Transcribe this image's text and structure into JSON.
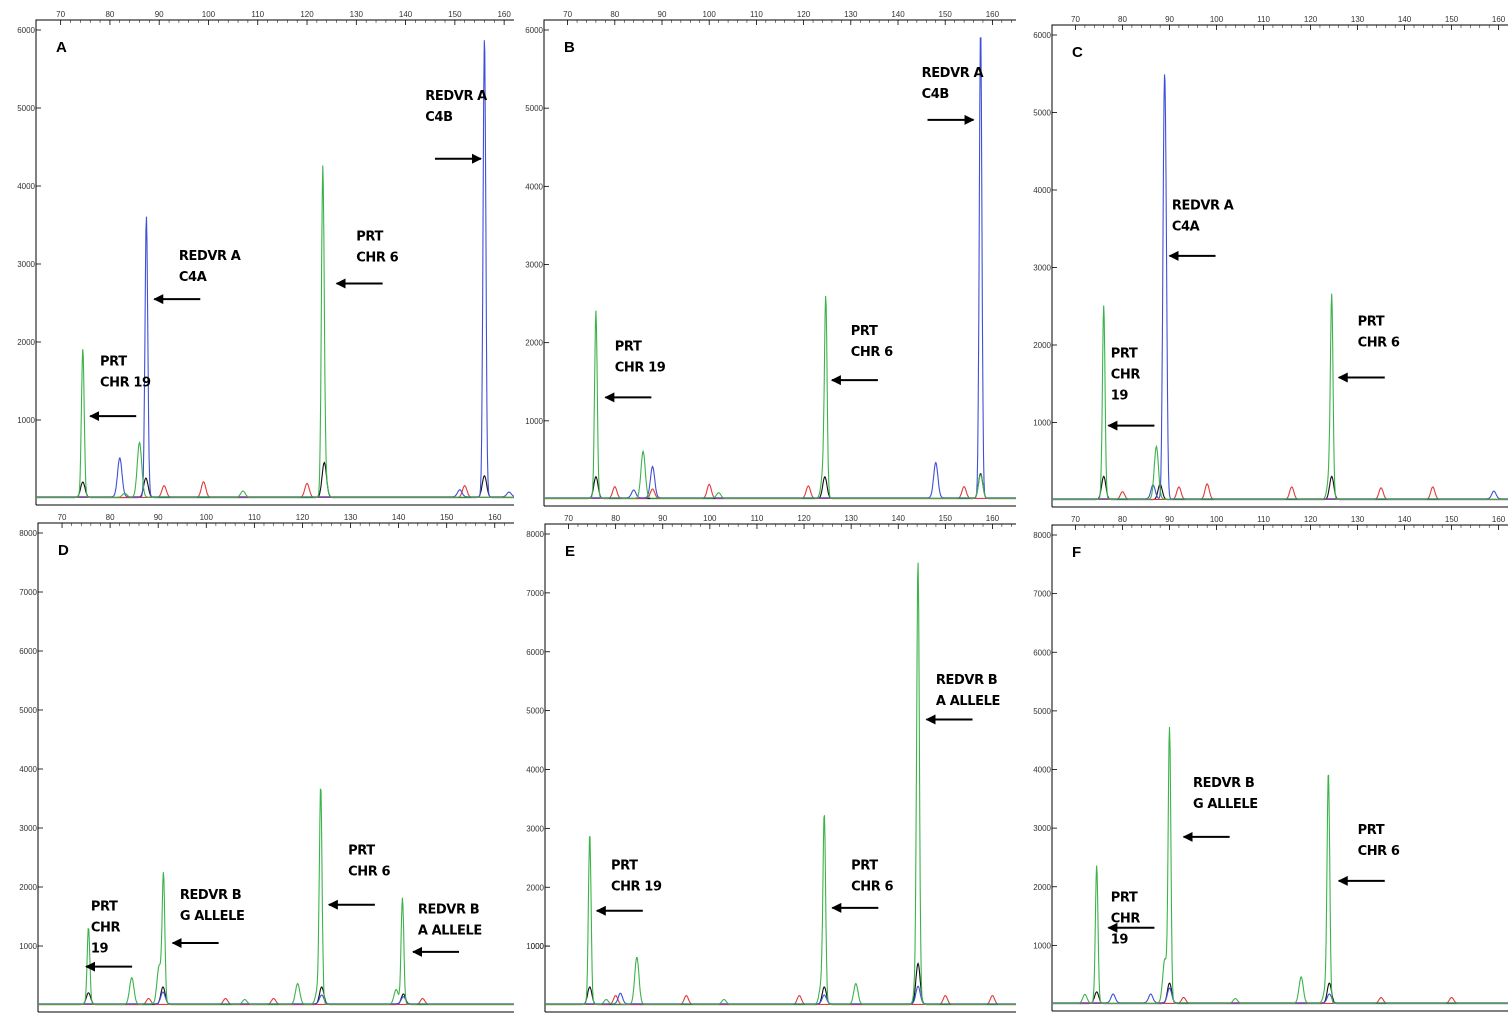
{
  "colors": {
    "green": "#3cb34a",
    "blue": "#3f4fd6",
    "red": "#e03a3a",
    "black": "#111111",
    "frame": "#000000"
  },
  "chart_data": [
    {
      "type": "line",
      "label": "A",
      "xlim": [
        65,
        162
      ],
      "ylim": [
        0,
        6000
      ],
      "x_ticks": [
        "70",
        "80",
        "90",
        "100",
        "110",
        "120",
        "130",
        "140",
        "150",
        "160"
      ],
      "y_ticks": [
        "1000",
        "2000",
        "3000",
        "4000",
        "5000",
        "6000"
      ],
      "series": [
        {
          "color": "green",
          "peaks": [
            [
              74.5,
              1900
            ],
            [
              86,
              700
            ],
            [
              123.2,
              4050
            ],
            [
              123.6,
              300
            ],
            [
              107,
              80
            ],
            [
              83,
              50
            ]
          ]
        },
        {
          "color": "blue",
          "peaks": [
            [
              82,
              500
            ],
            [
              87.4,
              3600
            ],
            [
              156,
              5900
            ],
            [
              151,
              90
            ],
            [
              161,
              60
            ]
          ]
        },
        {
          "color": "red",
          "peaks": [
            [
              99,
              200
            ],
            [
              91,
              150
            ],
            [
              120,
              180
            ],
            [
              152,
              150
            ]
          ]
        },
        {
          "color": "black",
          "peaks": [
            [
              74.5,
              200
            ],
            [
              87.3,
              250
            ],
            [
              123.5,
              450
            ],
            [
              156,
              280
            ]
          ]
        }
      ],
      "annotations": [
        {
          "lines": [
            "REDVR A",
            "C4B"
          ],
          "arrow": "right",
          "pointer_x": 155.3,
          "text_x": 144,
          "text_y": 5100,
          "y_at": 4350
        },
        {
          "lines": [
            "REDVR A",
            "C4A"
          ],
          "arrow": "left",
          "pointer_x": 89,
          "text_x": 94,
          "text_y": 3050,
          "y_at": 2550
        },
        {
          "lines": [
            "PRT",
            "CHR 6"
          ],
          "arrow": "left",
          "pointer_x": 126,
          "text_x": 130,
          "text_y": 3300,
          "y_at": 2750
        },
        {
          "lines": [
            "PRT",
            "CHR 19"
          ],
          "arrow": "left",
          "pointer_x": 76,
          "text_x": 78,
          "text_y": 1700,
          "y_at": 1050
        }
      ]
    },
    {
      "type": "line",
      "label": "B",
      "xlim": [
        65,
        165
      ],
      "ylim": [
        0,
        6000
      ],
      "x_ticks": [
        "70",
        "80",
        "90",
        "100",
        "110",
        "120",
        "130",
        "140",
        "150",
        "160"
      ],
      "y_ticks": [
        "1000",
        "2000",
        "3000",
        "4000",
        "5000",
        "6000"
      ],
      "series": [
        {
          "color": "green",
          "peaks": [
            [
              76,
              2400
            ],
            [
              86,
              600
            ],
            [
              124.7,
              2400
            ],
            [
              124.2,
              350
            ],
            [
              157.5,
              300
            ],
            [
              102,
              70
            ]
          ]
        },
        {
          "color": "blue",
          "peaks": [
            [
              88,
              400
            ],
            [
              84,
              100
            ],
            [
              148,
              450
            ],
            [
              157.5,
              6000
            ]
          ]
        },
        {
          "color": "red",
          "peaks": [
            [
              80,
              150
            ],
            [
              88,
              120
            ],
            [
              100,
              180
            ],
            [
              121,
              160
            ],
            [
              154,
              150
            ]
          ]
        },
        {
          "color": "black",
          "peaks": [
            [
              76,
              280
            ],
            [
              124.5,
              280
            ],
            [
              157.5,
              320
            ]
          ]
        }
      ],
      "annotations": [
        {
          "lines": [
            "REDVR A",
            "C4B"
          ],
          "arrow": "right",
          "pointer_x": 156,
          "text_x": 145,
          "text_y": 5400,
          "y_at": 4850
        },
        {
          "lines": [
            "PRT",
            "CHR 6"
          ],
          "arrow": "left",
          "pointer_x": 126,
          "text_x": 130,
          "text_y": 2100,
          "y_at": 1520
        },
        {
          "lines": [
            "PRT",
            "CHR 19"
          ],
          "arrow": "left",
          "pointer_x": 78,
          "text_x": 80,
          "text_y": 1900,
          "y_at": 1300
        }
      ]
    },
    {
      "type": "line",
      "label": "C",
      "xlim": [
        65,
        162
      ],
      "ylim": [
        0,
        6000
      ],
      "x_ticks": [
        "70",
        "80",
        "90",
        "100",
        "110",
        "120",
        "130",
        "140",
        "150",
        "160"
      ],
      "y_ticks": [
        "1000",
        "2000",
        "3000",
        "4000",
        "5000",
        "6000"
      ],
      "series": [
        {
          "color": "green",
          "peaks": [
            [
              76,
              2500
            ],
            [
              87.2,
              680
            ],
            [
              124.5,
              2500
            ],
            [
              124,
              280
            ]
          ]
        },
        {
          "color": "blue",
          "peaks": [
            [
              88.8,
              3900
            ],
            [
              89.2,
              3150
            ],
            [
              86.5,
              180
            ],
            [
              159,
              100
            ]
          ]
        },
        {
          "color": "red",
          "peaks": [
            [
              80,
              100
            ],
            [
              92,
              160
            ],
            [
              98,
              200
            ],
            [
              116,
              160
            ],
            [
              135,
              150
            ],
            [
              146,
              160
            ]
          ]
        },
        {
          "color": "black",
          "peaks": [
            [
              76,
              300
            ],
            [
              88,
              200
            ],
            [
              124.5,
              300
            ]
          ]
        }
      ],
      "annotations": [
        {
          "lines": [
            "REDVR A",
            "C4A"
          ],
          "arrow": "left",
          "pointer_x": 90,
          "text_x": 90.5,
          "text_y": 3750,
          "y_at": 3150
        },
        {
          "lines": [
            "PRT",
            "CHR 6"
          ],
          "arrow": "left",
          "pointer_x": 126,
          "text_x": 130,
          "text_y": 2250,
          "y_at": 1580
        },
        {
          "lines": [
            "PRT",
            "CHR",
            "19"
          ],
          "arrow": "left",
          "pointer_x": 77,
          "text_x": 77.5,
          "text_y": 1840,
          "y_at": 960
        }
      ]
    },
    {
      "type": "line",
      "label": "D",
      "xlim": [
        65,
        164
      ],
      "ylim": [
        0,
        8000
      ],
      "x_ticks": [
        "70",
        "80",
        "90",
        "100",
        "110",
        "120",
        "130",
        "140",
        "150",
        "160"
      ],
      "y_ticks": [
        "1000",
        "2000",
        "3000",
        "4000",
        "5000",
        "6000",
        "7000",
        "8000"
      ],
      "series": [
        {
          "color": "green",
          "peaks": [
            [
              75.5,
              1300
            ],
            [
              84.5,
              450
            ],
            [
              90.2,
              650
            ],
            [
              91.1,
              2150
            ],
            [
              119,
              350
            ],
            [
              123.8,
              3600
            ],
            [
              123.2,
              250
            ],
            [
              140.8,
              1800
            ],
            [
              139.5,
              250
            ],
            [
              108,
              80
            ]
          ]
        },
        {
          "color": "blue",
          "peaks": [
            [
              91,
              200
            ],
            [
              124,
              150
            ],
            [
              141,
              120
            ]
          ]
        },
        {
          "color": "red",
          "peaks": [
            [
              88,
              100
            ],
            [
              104,
              100
            ],
            [
              114,
              100
            ],
            [
              145,
              100
            ]
          ]
        },
        {
          "color": "black",
          "peaks": [
            [
              75.5,
              200
            ],
            [
              91,
              300
            ],
            [
              124,
              300
            ],
            [
              141,
              180
            ]
          ]
        }
      ],
      "annotations": [
        {
          "lines": [
            "PRT",
            "CHR",
            "19"
          ],
          "arrow": "left",
          "pointer_x": 75,
          "text_x": 76,
          "text_y": 1600,
          "y_at": 650
        },
        {
          "lines": [
            "REDVR B",
            "G ALLELE"
          ],
          "arrow": "left",
          "pointer_x": 93,
          "text_x": 94.5,
          "text_y": 1800,
          "y_at": 1050
        },
        {
          "lines": [
            "PRT",
            "CHR 6"
          ],
          "arrow": "left",
          "pointer_x": 125.5,
          "text_x": 129.5,
          "text_y": 2550,
          "y_at": 1700
        },
        {
          "lines": [
            "REDVR B",
            "A ALLELE"
          ],
          "arrow": "left",
          "pointer_x": 143,
          "text_x": 144,
          "text_y": 1550,
          "y_at": 900
        }
      ]
    },
    {
      "type": "line",
      "label": "E",
      "xlim": [
        65,
        165
      ],
      "ylim": [
        0,
        8000
      ],
      "x_ticks": [
        "70",
        "80",
        "90",
        "100",
        "110",
        "120",
        "130",
        "140",
        "150",
        "160"
      ],
      "y_ticks": [
        "000",
        "1000",
        "2000",
        "3000",
        "4000",
        "5000",
        "6000",
        "7000",
        "8000"
      ],
      "series": [
        {
          "color": "green",
          "peaks": [
            [
              74.5,
              2900
            ],
            [
              84.5,
              800
            ],
            [
              124.3,
              3100
            ],
            [
              123.7,
              350
            ],
            [
              131,
              350
            ],
            [
              144.2,
              6900
            ],
            [
              144,
              700
            ],
            [
              103,
              80
            ],
            [
              78,
              80
            ]
          ]
        },
        {
          "color": "blue",
          "peaks": [
            [
              81,
              180
            ],
            [
              124.3,
              150
            ],
            [
              144.2,
              300
            ]
          ]
        },
        {
          "color": "red",
          "peaks": [
            [
              80,
              150
            ],
            [
              95,
              150
            ],
            [
              119,
              150
            ],
            [
              150,
              150
            ],
            [
              160,
              150
            ]
          ]
        },
        {
          "color": "black",
          "peaks": [
            [
              74.5,
              300
            ],
            [
              124.3,
              300
            ],
            [
              144.2,
              700
            ]
          ]
        }
      ],
      "annotations": [
        {
          "lines": [
            "REDVR B",
            "A ALLELE"
          ],
          "arrow": "left",
          "pointer_x": 146,
          "text_x": 148,
          "text_y": 5450,
          "y_at": 4850
        },
        {
          "lines": [
            "PRT",
            "CHR 6"
          ],
          "arrow": "left",
          "pointer_x": 126,
          "text_x": 130,
          "text_y": 2300,
          "y_at": 1650
        },
        {
          "lines": [
            "PRT",
            "CHR 19"
          ],
          "arrow": "left",
          "pointer_x": 76,
          "text_x": 79,
          "text_y": 2300,
          "y_at": 1600
        }
      ]
    },
    {
      "type": "line",
      "label": "F",
      "xlim": [
        65,
        162
      ],
      "ylim": [
        0,
        8000
      ],
      "x_ticks": [
        "70",
        "80",
        "90",
        "100",
        "110",
        "120",
        "130",
        "140",
        "150",
        "160"
      ],
      "y_ticks": [
        "1000",
        "2000",
        "3000",
        "4000",
        "5000",
        "6000",
        "7000",
        "8000"
      ],
      "series": [
        {
          "color": "green",
          "peaks": [
            [
              74.5,
              2350
            ],
            [
              72,
              150
            ],
            [
              89,
              750
            ],
            [
              90,
              4650
            ],
            [
              118,
              450
            ],
            [
              123.8,
              3850
            ],
            [
              123.2,
              250
            ],
            [
              104,
              80
            ]
          ]
        },
        {
          "color": "blue",
          "peaks": [
            [
              78,
              150
            ],
            [
              86,
              150
            ],
            [
              90,
              250
            ],
            [
              124,
              150
            ]
          ]
        },
        {
          "color": "red",
          "peaks": [
            [
              93,
              100
            ],
            [
              135,
              100
            ],
            [
              150,
              100
            ]
          ]
        },
        {
          "color": "black",
          "peaks": [
            [
              74.5,
              200
            ],
            [
              90,
              350
            ],
            [
              124,
              350
            ]
          ]
        }
      ],
      "annotations": [
        {
          "lines": [
            "REDVR B",
            "G ALLELE"
          ],
          "arrow": "left",
          "pointer_x": 93,
          "text_x": 95,
          "text_y": 3700,
          "y_at": 2850
        },
        {
          "lines": [
            "PRT",
            "CHR 6"
          ],
          "arrow": "left",
          "pointer_x": 126,
          "text_x": 130,
          "text_y": 2900,
          "y_at": 2100
        },
        {
          "lines": [
            "PRT",
            "CHR",
            "19"
          ],
          "arrow": "left",
          "pointer_x": 77,
          "text_x": 77.5,
          "text_y": 1750,
          "y_at": 1300
        }
      ]
    }
  ]
}
